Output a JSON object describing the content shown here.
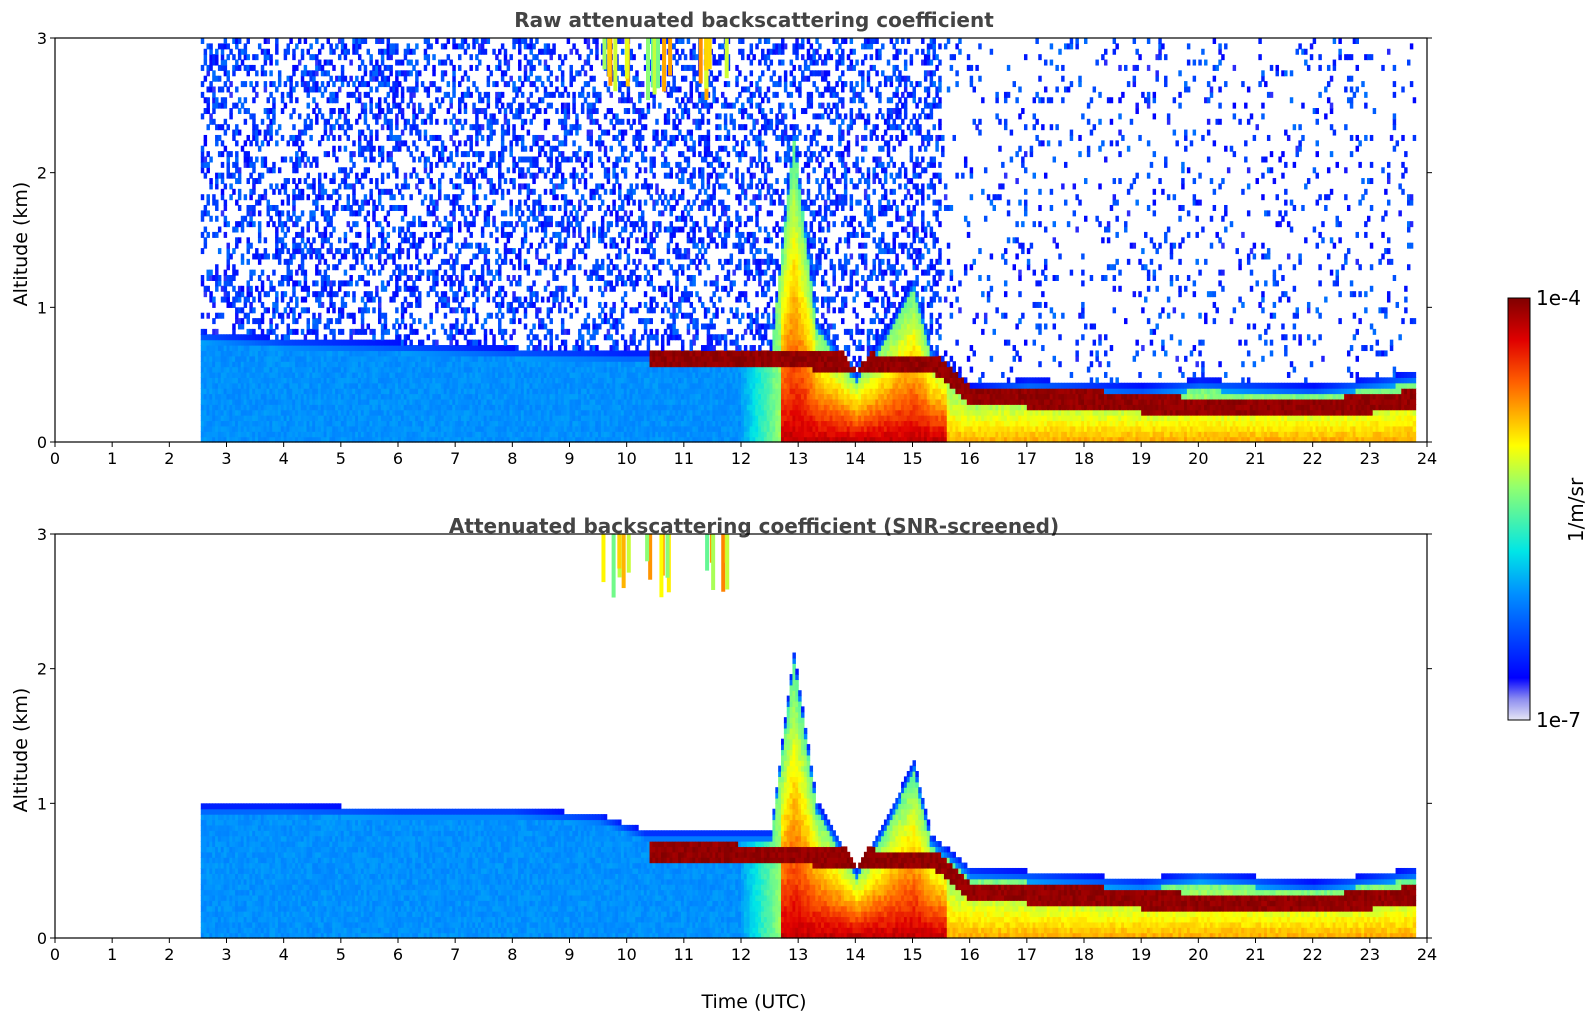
{
  "chart_data": [
    {
      "type": "heatmap",
      "title": "Raw attenuated backscattering coefficient",
      "xlabel": "",
      "ylabel": "Altitude (km)",
      "xlim": [
        0,
        24
      ],
      "ylim": [
        0,
        3
      ],
      "x_ticks": [
        "0",
        "1",
        "2",
        "3",
        "4",
        "5",
        "6",
        "7",
        "8",
        "9",
        "10",
        "11",
        "12",
        "13",
        "14",
        "15",
        "16",
        "17",
        "18",
        "19",
        "20",
        "21",
        "22",
        "23",
        "24"
      ],
      "y_ticks": [
        "0",
        "1",
        "2",
        "3"
      ],
      "data_start_hour": 2.55,
      "data_end_hour": 23.8,
      "noise": "high",
      "boundary_layer_top_km": [
        [
          2.55,
          0.8
        ],
        [
          4,
          0.75
        ],
        [
          6,
          0.72
        ],
        [
          8,
          0.68
        ],
        [
          10,
          0.65
        ],
        [
          10.5,
          0.65
        ],
        [
          12.5,
          0.68
        ],
        [
          12.9,
          2.3
        ],
        [
          13.3,
          0.9
        ],
        [
          14.0,
          0.5
        ],
        [
          14.5,
          0.8
        ],
        [
          15.0,
          1.2
        ],
        [
          15.3,
          0.7
        ],
        [
          16.0,
          0.4
        ],
        [
          17.0,
          0.45
        ],
        [
          19.0,
          0.4
        ],
        [
          20.0,
          0.45
        ],
        [
          22.0,
          0.4
        ],
        [
          23.8,
          0.5
        ]
      ],
      "strong_layer_km": [
        [
          10.4,
          0.63
        ],
        [
          12.7,
          0.6
        ],
        [
          15.4,
          0.55
        ],
        [
          16.0,
          0.32
        ],
        [
          18.0,
          0.3
        ],
        [
          20.0,
          0.24
        ],
        [
          22.0,
          0.23
        ],
        [
          23.8,
          0.3
        ]
      ],
      "precipitation_hours": [
        9.8,
        10.5,
        11.5
      ]
    },
    {
      "type": "heatmap",
      "title": "Attenuated backscattering coefficient (SNR-screened)",
      "xlabel": "Time (UTC)",
      "ylabel": "Altitude (km)",
      "xlim": [
        0,
        24
      ],
      "ylim": [
        0,
        3
      ],
      "x_ticks": [
        "0",
        "1",
        "2",
        "3",
        "4",
        "5",
        "6",
        "7",
        "8",
        "9",
        "10",
        "11",
        "12",
        "13",
        "14",
        "15",
        "16",
        "17",
        "18",
        "19",
        "20",
        "21",
        "22",
        "23",
        "24"
      ],
      "y_ticks": [
        "0",
        "1",
        "2",
        "3"
      ],
      "data_start_hour": 2.55,
      "data_end_hour": 23.8,
      "noise": "screened",
      "boundary_layer_top_km": [
        [
          2.55,
          0.97
        ],
        [
          4,
          0.97
        ],
        [
          6,
          0.95
        ],
        [
          8,
          0.95
        ],
        [
          9.5,
          0.9
        ],
        [
          10.3,
          0.78
        ],
        [
          12.5,
          0.78
        ],
        [
          12.9,
          2.1
        ],
        [
          13.3,
          1.0
        ],
        [
          14.0,
          0.5
        ],
        [
          14.5,
          0.85
        ],
        [
          15.0,
          1.3
        ],
        [
          15.3,
          0.75
        ],
        [
          16.0,
          0.5
        ],
        [
          17.0,
          0.48
        ],
        [
          19.0,
          0.42
        ],
        [
          20.0,
          0.48
        ],
        [
          22.0,
          0.4
        ],
        [
          23.8,
          0.5
        ]
      ],
      "strong_layer_km": [
        [
          10.4,
          0.63
        ],
        [
          12.7,
          0.6
        ],
        [
          15.4,
          0.55
        ],
        [
          16.0,
          0.32
        ],
        [
          18.0,
          0.3
        ],
        [
          20.0,
          0.24
        ],
        [
          22.0,
          0.23
        ],
        [
          23.8,
          0.3
        ]
      ],
      "precipitation_hours": [
        9.8,
        10.5,
        11.5
      ]
    }
  ],
  "colorbar": {
    "max_label": "1e-4",
    "min_label": "1e-7",
    "label": "1/m/sr",
    "colormap": "jet"
  }
}
